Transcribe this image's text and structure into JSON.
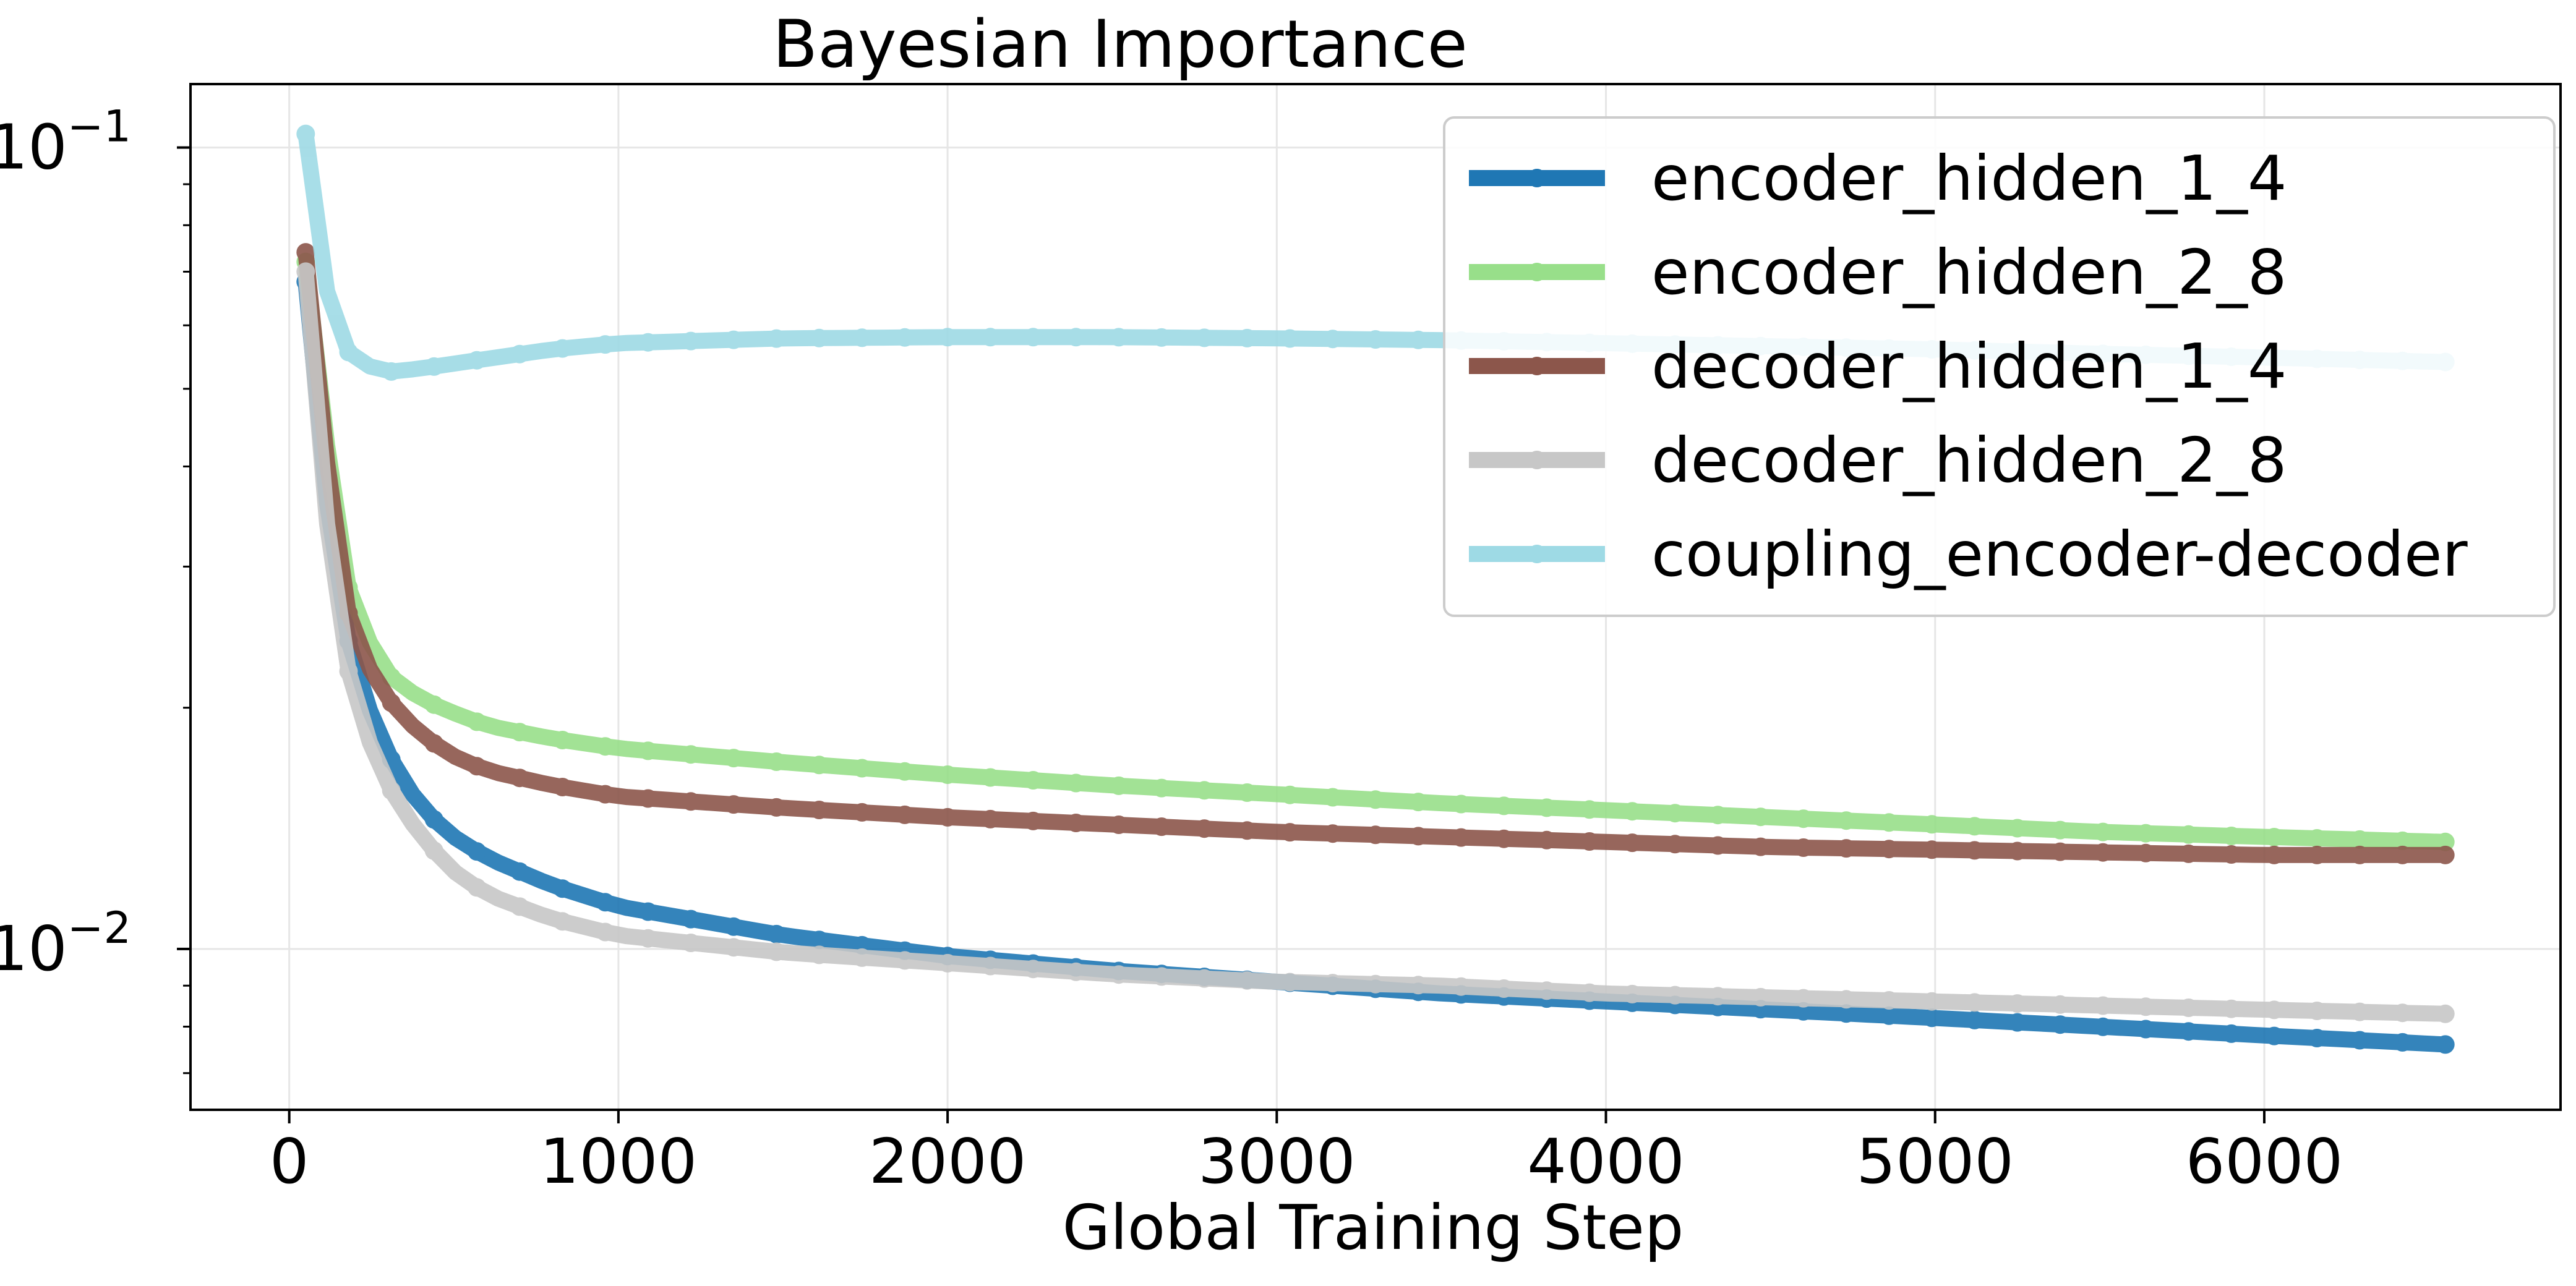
{
  "chart_data": {
    "type": "line",
    "title": "Bayesian Importance",
    "xlabel": "Global Training Step",
    "ylabel": "",
    "xlim": [
      -300,
      6900
    ],
    "ylim": [
      0.0063,
      0.12
    ],
    "yscale": "log",
    "x_ticks": [
      0,
      1000,
      2000,
      3000,
      4000,
      5000,
      6000
    ],
    "y_ticks": [
      {
        "value": 0.01,
        "base": "10",
        "exp": "−2"
      },
      {
        "value": 0.1,
        "base": "10",
        "exp": "−1"
      }
    ],
    "grid": true,
    "legend_position": "top-right",
    "x_start": 50,
    "x_end": 6550,
    "x_step": 65,
    "series": [
      {
        "name": "encoder_hidden_1_4",
        "color": "#1f77b4",
        "line_width": 26,
        "marker_every": 130,
        "key_points": [
          [
            50,
            0.068
          ],
          [
            100,
            0.04
          ],
          [
            150,
            0.028
          ],
          [
            200,
            0.022
          ],
          [
            300,
            0.0175
          ],
          [
            400,
            0.015
          ],
          [
            500,
            0.0138
          ],
          [
            600,
            0.013
          ],
          [
            800,
            0.012
          ],
          [
            1000,
            0.0113
          ],
          [
            1500,
            0.0104
          ],
          [
            2000,
            0.0098
          ],
          [
            2500,
            0.0094
          ],
          [
            3000,
            0.0091
          ],
          [
            3500,
            0.0088
          ],
          [
            4000,
            0.0086
          ],
          [
            4500,
            0.0084
          ],
          [
            5000,
            0.0082
          ],
          [
            5500,
            0.008
          ],
          [
            6000,
            0.0078
          ],
          [
            6550,
            0.0076
          ]
        ]
      },
      {
        "name": "encoder_hidden_2_8",
        "color": "#98df8a",
        "line_width": 26,
        "marker_every": 130,
        "key_points": [
          [
            50,
            0.072
          ],
          [
            100,
            0.048
          ],
          [
            150,
            0.032
          ],
          [
            200,
            0.026
          ],
          [
            300,
            0.022
          ],
          [
            400,
            0.0205
          ],
          [
            500,
            0.0197
          ],
          [
            600,
            0.019
          ],
          [
            800,
            0.0183
          ],
          [
            1000,
            0.0178
          ],
          [
            1500,
            0.0171
          ],
          [
            2000,
            0.0165
          ],
          [
            2500,
            0.016
          ],
          [
            3000,
            0.0156
          ],
          [
            3500,
            0.0152
          ],
          [
            4000,
            0.0149
          ],
          [
            4500,
            0.0146
          ],
          [
            5000,
            0.0143
          ],
          [
            5500,
            0.014
          ],
          [
            6000,
            0.0138
          ],
          [
            6550,
            0.0136
          ]
        ]
      },
      {
        "name": "decoder_hidden_1_4",
        "color": "#8c564b",
        "line_width": 26,
        "marker_every": 130,
        "key_points": [
          [
            50,
            0.074
          ],
          [
            100,
            0.046
          ],
          [
            150,
            0.03
          ],
          [
            200,
            0.024
          ],
          [
            300,
            0.0205
          ],
          [
            400,
            0.0185
          ],
          [
            500,
            0.0174
          ],
          [
            600,
            0.0167
          ],
          [
            800,
            0.016
          ],
          [
            1000,
            0.0155
          ],
          [
            1500,
            0.015
          ],
          [
            2000,
            0.0146
          ],
          [
            2500,
            0.0143
          ],
          [
            3000,
            0.014
          ],
          [
            3500,
            0.0138
          ],
          [
            4000,
            0.0136
          ],
          [
            4500,
            0.0134
          ],
          [
            5000,
            0.0133
          ],
          [
            5500,
            0.0132
          ],
          [
            6000,
            0.0131
          ],
          [
            6550,
            0.0131
          ]
        ]
      },
      {
        "name": "decoder_hidden_2_8",
        "color": "#c7c7c7",
        "line_width": 26,
        "marker_every": 130,
        "key_points": [
          [
            50,
            0.07
          ],
          [
            100,
            0.038
          ],
          [
            150,
            0.026
          ],
          [
            200,
            0.02
          ],
          [
            300,
            0.016
          ],
          [
            400,
            0.0138
          ],
          [
            500,
            0.0125
          ],
          [
            600,
            0.0117
          ],
          [
            800,
            0.0109
          ],
          [
            1000,
            0.0104
          ],
          [
            1500,
            0.0099
          ],
          [
            2000,
            0.0096
          ],
          [
            2500,
            0.0093
          ],
          [
            3000,
            0.0091
          ],
          [
            3500,
            0.009
          ],
          [
            4000,
            0.0088
          ],
          [
            4500,
            0.0087
          ],
          [
            5000,
            0.0086
          ],
          [
            5500,
            0.0085
          ],
          [
            6000,
            0.0084
          ],
          [
            6550,
            0.0083
          ]
        ]
      },
      {
        "name": "coupling_encoder-decoder",
        "color": "#9edae5",
        "line_width": 26,
        "marker_every": 130,
        "key_points": [
          [
            50,
            0.104
          ],
          [
            100,
            0.07
          ],
          [
            150,
            0.058
          ],
          [
            200,
            0.054
          ],
          [
            300,
            0.0525
          ],
          [
            400,
            0.053
          ],
          [
            600,
            0.0545
          ],
          [
            800,
            0.056
          ],
          [
            1000,
            0.057
          ],
          [
            1500,
            0.0578
          ],
          [
            2000,
            0.058
          ],
          [
            2500,
            0.058
          ],
          [
            3000,
            0.0578
          ],
          [
            3500,
            0.0575
          ],
          [
            4000,
            0.057
          ],
          [
            4500,
            0.0565
          ],
          [
            5000,
            0.056
          ],
          [
            5500,
            0.0553
          ],
          [
            6000,
            0.0547
          ],
          [
            6550,
            0.054
          ]
        ]
      }
    ]
  }
}
